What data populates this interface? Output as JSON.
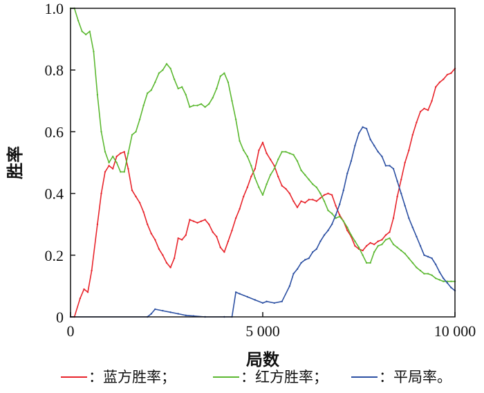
{
  "chart_data": {
    "type": "line",
    "title": "",
    "xlabel": "局数",
    "ylabel": "胜率",
    "xlim": [
      0,
      10000
    ],
    "ylim": [
      0,
      1.0
    ],
    "x_ticks": [
      0,
      5000,
      10000
    ],
    "x_tick_labels": [
      "0",
      "5 000",
      "10 000"
    ],
    "y_ticks": [
      0,
      0.2,
      0.4,
      0.6,
      0.8,
      1.0
    ],
    "y_tick_labels": [
      "0",
      "0.2",
      "0.4",
      "0.6",
      "0.8",
      "1.0"
    ],
    "grid": false,
    "legend_position": "bottom",
    "series": [
      {
        "name": "蓝方胜率",
        "legend_label": "：蓝方胜率；",
        "color": "#e8232a",
        "points": [
          [
            0,
            0
          ],
          [
            100,
            0
          ],
          [
            250,
            0.06
          ],
          [
            350,
            0.09
          ],
          [
            450,
            0.08
          ],
          [
            550,
            0.15
          ],
          [
            700,
            0.3
          ],
          [
            800,
            0.4
          ],
          [
            900,
            0.47
          ],
          [
            1000,
            0.49
          ],
          [
            1100,
            0.48
          ],
          [
            1200,
            0.52
          ],
          [
            1300,
            0.53
          ],
          [
            1400,
            0.535
          ],
          [
            1500,
            0.48
          ],
          [
            1600,
            0.41
          ],
          [
            1700,
            0.39
          ],
          [
            1800,
            0.37
          ],
          [
            1900,
            0.34
          ],
          [
            2000,
            0.3
          ],
          [
            2100,
            0.27
          ],
          [
            2200,
            0.25
          ],
          [
            2300,
            0.22
          ],
          [
            2400,
            0.2
          ],
          [
            2500,
            0.175
          ],
          [
            2600,
            0.16
          ],
          [
            2700,
            0.19
          ],
          [
            2800,
            0.255
          ],
          [
            2900,
            0.25
          ],
          [
            3000,
            0.265
          ],
          [
            3100,
            0.315
          ],
          [
            3200,
            0.31
          ],
          [
            3300,
            0.305
          ],
          [
            3400,
            0.31
          ],
          [
            3500,
            0.315
          ],
          [
            3600,
            0.3
          ],
          [
            3700,
            0.275
          ],
          [
            3800,
            0.26
          ],
          [
            3900,
            0.225
          ],
          [
            4000,
            0.21
          ],
          [
            4100,
            0.245
          ],
          [
            4200,
            0.28
          ],
          [
            4300,
            0.32
          ],
          [
            4400,
            0.35
          ],
          [
            4500,
            0.39
          ],
          [
            4600,
            0.42
          ],
          [
            4700,
            0.455
          ],
          [
            4800,
            0.48
          ],
          [
            4900,
            0.54
          ],
          [
            5000,
            0.565
          ],
          [
            5100,
            0.53
          ],
          [
            5200,
            0.51
          ],
          [
            5300,
            0.49
          ],
          [
            5400,
            0.455
          ],
          [
            5500,
            0.425
          ],
          [
            5600,
            0.415
          ],
          [
            5700,
            0.4
          ],
          [
            5800,
            0.375
          ],
          [
            5900,
            0.355
          ],
          [
            6000,
            0.375
          ],
          [
            6100,
            0.37
          ],
          [
            6200,
            0.38
          ],
          [
            6300,
            0.38
          ],
          [
            6400,
            0.375
          ],
          [
            6500,
            0.385
          ],
          [
            6600,
            0.395
          ],
          [
            6700,
            0.4
          ],
          [
            6800,
            0.395
          ],
          [
            6900,
            0.36
          ],
          [
            7000,
            0.33
          ],
          [
            7100,
            0.31
          ],
          [
            7200,
            0.28
          ],
          [
            7300,
            0.26
          ],
          [
            7400,
            0.23
          ],
          [
            7500,
            0.22
          ],
          [
            7600,
            0.215
          ],
          [
            7700,
            0.23
          ],
          [
            7800,
            0.24
          ],
          [
            7900,
            0.235
          ],
          [
            8000,
            0.245
          ],
          [
            8100,
            0.25
          ],
          [
            8200,
            0.265
          ],
          [
            8300,
            0.275
          ],
          [
            8400,
            0.32
          ],
          [
            8500,
            0.39
          ],
          [
            8600,
            0.445
          ],
          [
            8700,
            0.5
          ],
          [
            8800,
            0.54
          ],
          [
            8900,
            0.59
          ],
          [
            9000,
            0.63
          ],
          [
            9100,
            0.665
          ],
          [
            9200,
            0.675
          ],
          [
            9300,
            0.67
          ],
          [
            9400,
            0.7
          ],
          [
            9500,
            0.745
          ],
          [
            9600,
            0.76
          ],
          [
            9700,
            0.77
          ],
          [
            9800,
            0.785
          ],
          [
            9900,
            0.79
          ],
          [
            10000,
            0.805
          ]
        ]
      },
      {
        "name": "红方胜率",
        "legend_label": "：红方胜率；",
        "color": "#5bb830",
        "points": [
          [
            0,
            1.0
          ],
          [
            100,
            1.0
          ],
          [
            200,
            0.96
          ],
          [
            300,
            0.925
          ],
          [
            400,
            0.915
          ],
          [
            500,
            0.925
          ],
          [
            600,
            0.86
          ],
          [
            700,
            0.72
          ],
          [
            800,
            0.6
          ],
          [
            900,
            0.535
          ],
          [
            1000,
            0.5
          ],
          [
            1100,
            0.52
          ],
          [
            1200,
            0.5
          ],
          [
            1300,
            0.47
          ],
          [
            1400,
            0.47
          ],
          [
            1500,
            0.53
          ],
          [
            1600,
            0.59
          ],
          [
            1700,
            0.6
          ],
          [
            1800,
            0.64
          ],
          [
            1900,
            0.685
          ],
          [
            2000,
            0.725
          ],
          [
            2100,
            0.735
          ],
          [
            2200,
            0.76
          ],
          [
            2300,
            0.79
          ],
          [
            2400,
            0.8
          ],
          [
            2500,
            0.82
          ],
          [
            2600,
            0.805
          ],
          [
            2700,
            0.77
          ],
          [
            2800,
            0.74
          ],
          [
            2900,
            0.745
          ],
          [
            3000,
            0.72
          ],
          [
            3100,
            0.68
          ],
          [
            3200,
            0.685
          ],
          [
            3300,
            0.685
          ],
          [
            3400,
            0.69
          ],
          [
            3500,
            0.68
          ],
          [
            3600,
            0.69
          ],
          [
            3700,
            0.71
          ],
          [
            3800,
            0.74
          ],
          [
            3900,
            0.78
          ],
          [
            4000,
            0.79
          ],
          [
            4100,
            0.76
          ],
          [
            4200,
            0.7
          ],
          [
            4300,
            0.64
          ],
          [
            4400,
            0.57
          ],
          [
            4500,
            0.54
          ],
          [
            4600,
            0.52
          ],
          [
            4700,
            0.49
          ],
          [
            4800,
            0.45
          ],
          [
            4900,
            0.42
          ],
          [
            5000,
            0.395
          ],
          [
            5100,
            0.43
          ],
          [
            5200,
            0.46
          ],
          [
            5300,
            0.48
          ],
          [
            5400,
            0.51
          ],
          [
            5500,
            0.535
          ],
          [
            5600,
            0.535
          ],
          [
            5700,
            0.53
          ],
          [
            5800,
            0.525
          ],
          [
            5900,
            0.505
          ],
          [
            6000,
            0.475
          ],
          [
            6100,
            0.46
          ],
          [
            6200,
            0.445
          ],
          [
            6300,
            0.43
          ],
          [
            6400,
            0.42
          ],
          [
            6500,
            0.4
          ],
          [
            6600,
            0.375
          ],
          [
            6700,
            0.345
          ],
          [
            6800,
            0.335
          ],
          [
            6900,
            0.32
          ],
          [
            7000,
            0.325
          ],
          [
            7100,
            0.31
          ],
          [
            7200,
            0.29
          ],
          [
            7300,
            0.265
          ],
          [
            7400,
            0.245
          ],
          [
            7500,
            0.225
          ],
          [
            7600,
            0.2
          ],
          [
            7700,
            0.175
          ],
          [
            7800,
            0.175
          ],
          [
            7900,
            0.21
          ],
          [
            8000,
            0.23
          ],
          [
            8100,
            0.235
          ],
          [
            8200,
            0.25
          ],
          [
            8300,
            0.255
          ],
          [
            8400,
            0.235
          ],
          [
            8500,
            0.225
          ],
          [
            8600,
            0.215
          ],
          [
            8700,
            0.205
          ],
          [
            8800,
            0.19
          ],
          [
            8900,
            0.175
          ],
          [
            9000,
            0.16
          ],
          [
            9100,
            0.15
          ],
          [
            9200,
            0.14
          ],
          [
            9300,
            0.14
          ],
          [
            9400,
            0.135
          ],
          [
            9500,
            0.125
          ],
          [
            9600,
            0.12
          ],
          [
            9700,
            0.115
          ],
          [
            9800,
            0.115
          ],
          [
            9900,
            0.115
          ],
          [
            10000,
            0.115
          ]
        ]
      },
      {
        "name": "平局率",
        "legend_label": "：平局率。",
        "color": "#2b4fa2",
        "points": [
          [
            0,
            0
          ],
          [
            2000,
            0
          ],
          [
            2100,
            0.01
          ],
          [
            2200,
            0.025
          ],
          [
            2400,
            0.02
          ],
          [
            2600,
            0.015
          ],
          [
            2800,
            0.01
          ],
          [
            3000,
            0.005
          ],
          [
            3200,
            0.003
          ],
          [
            3500,
            0.0
          ],
          [
            4000,
            0.0
          ],
          [
            4200,
            0.0
          ],
          [
            4300,
            0.08
          ],
          [
            4400,
            0.075
          ],
          [
            4600,
            0.065
          ],
          [
            4800,
            0.055
          ],
          [
            5000,
            0.045
          ],
          [
            5100,
            0.05
          ],
          [
            5300,
            0.045
          ],
          [
            5500,
            0.05
          ],
          [
            5700,
            0.1
          ],
          [
            5800,
            0.14
          ],
          [
            5900,
            0.155
          ],
          [
            6000,
            0.175
          ],
          [
            6100,
            0.185
          ],
          [
            6200,
            0.19
          ],
          [
            6300,
            0.21
          ],
          [
            6400,
            0.22
          ],
          [
            6500,
            0.245
          ],
          [
            6600,
            0.265
          ],
          [
            6700,
            0.28
          ],
          [
            6800,
            0.3
          ],
          [
            6900,
            0.33
          ],
          [
            7000,
            0.365
          ],
          [
            7100,
            0.41
          ],
          [
            7200,
            0.465
          ],
          [
            7300,
            0.505
          ],
          [
            7400,
            0.555
          ],
          [
            7500,
            0.595
          ],
          [
            7600,
            0.615
          ],
          [
            7700,
            0.61
          ],
          [
            7800,
            0.575
          ],
          [
            7900,
            0.555
          ],
          [
            8000,
            0.535
          ],
          [
            8100,
            0.52
          ],
          [
            8200,
            0.49
          ],
          [
            8300,
            0.49
          ],
          [
            8400,
            0.48
          ],
          [
            8500,
            0.44
          ],
          [
            8600,
            0.4
          ],
          [
            8700,
            0.36
          ],
          [
            8800,
            0.32
          ],
          [
            8900,
            0.29
          ],
          [
            9000,
            0.26
          ],
          [
            9100,
            0.23
          ],
          [
            9200,
            0.2
          ],
          [
            9300,
            0.195
          ],
          [
            9400,
            0.19
          ],
          [
            9500,
            0.17
          ],
          [
            9600,
            0.145
          ],
          [
            9700,
            0.125
          ],
          [
            9800,
            0.11
          ],
          [
            9900,
            0.095
          ],
          [
            10000,
            0.085
          ]
        ]
      }
    ]
  }
}
